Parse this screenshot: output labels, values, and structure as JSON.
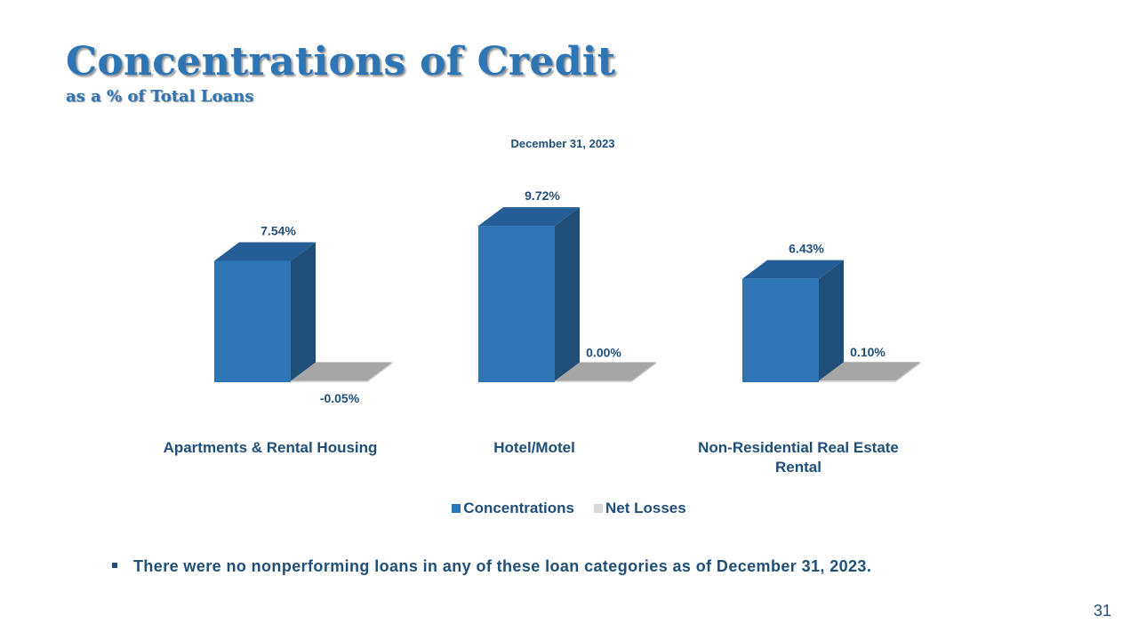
{
  "slide": {
    "title": "Concentrations of Credit",
    "subtitle": "as a % of Total Loans",
    "note": "There were no nonperforming loans in any of these loan categories as of December 31, 2023.",
    "page_number": "31"
  },
  "colors": {
    "title": "#2e75b6",
    "text": "#1f4e79",
    "concentrations": "#2e75b6",
    "net_losses": "#a6a6a6"
  },
  "chart_data": {
    "type": "bar",
    "title": "December 31, 2023",
    "categories": [
      "Apartments & Rental Housing",
      "Hotel/Motel",
      "Non-Residential Real Estate Rental"
    ],
    "category_label_lines": [
      [
        "Apartments & Rental Housing"
      ],
      [
        "Hotel/Motel"
      ],
      [
        "Non-Residential Real Estate",
        "Rental"
      ]
    ],
    "series": [
      {
        "name": "Concentrations",
        "values": [
          7.54,
          9.72,
          6.43
        ],
        "labels": [
          "7.54%",
          "9.72%",
          "6.43%"
        ]
      },
      {
        "name": "Net Losses",
        "values": [
          -0.05,
          0.0,
          0.1
        ],
        "labels": [
          "-0.05%",
          "0.00%",
          "0.10%"
        ]
      }
    ],
    "ylabel": "",
    "xlabel": "",
    "ylim": [
      -0.5,
      10
    ],
    "grid": false,
    "legend_position": "bottom",
    "style": "3d-clustered-column"
  }
}
